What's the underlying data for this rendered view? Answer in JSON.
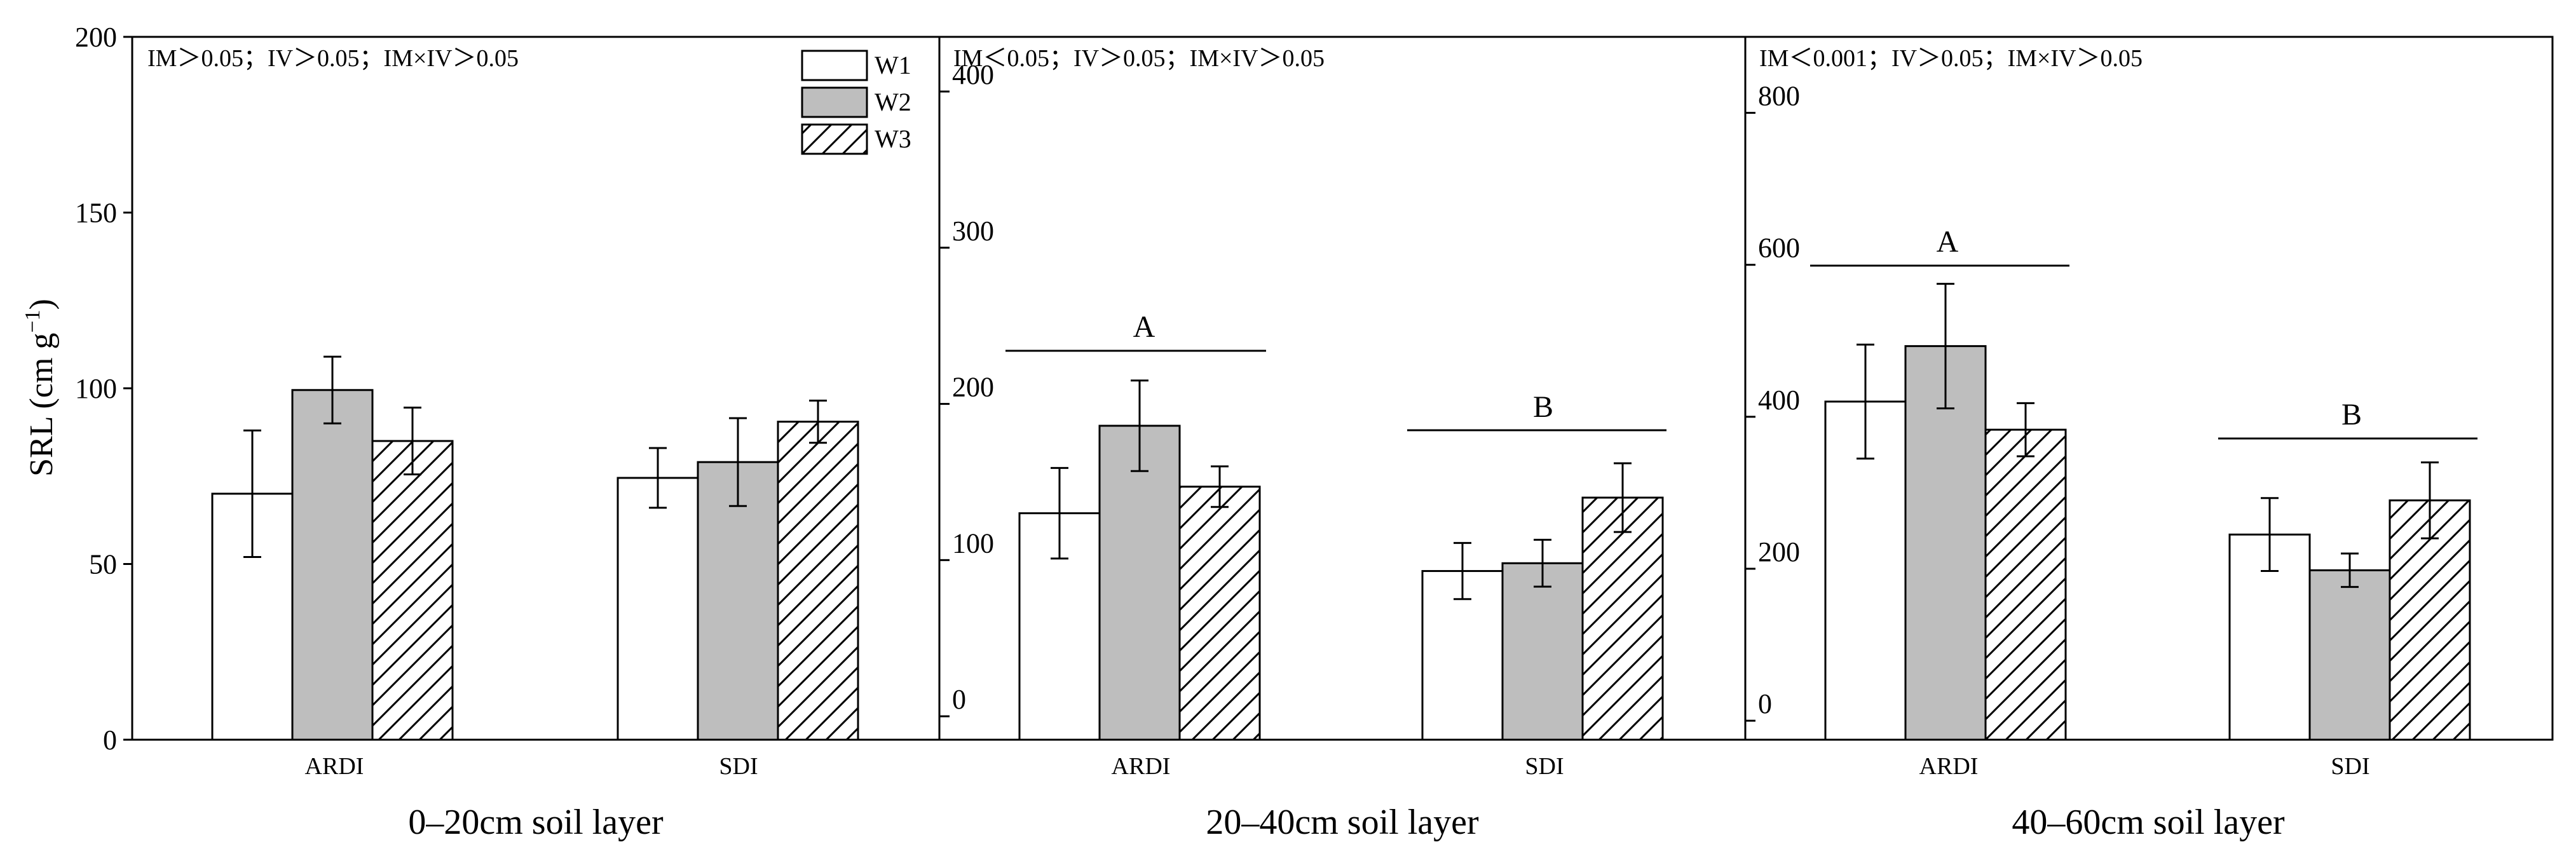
{
  "chart_data": {
    "type": "bar",
    "ylabel": "SRL (cm g",
    "ylabel_sup": "−1",
    "ylabel_close": ")",
    "series": [
      {
        "name": "W1",
        "fill": "#ffffff",
        "pattern": "none"
      },
      {
        "name": "W2",
        "fill": "#bebebe",
        "pattern": "none"
      },
      {
        "name": "W3",
        "fill": "#ffffff",
        "pattern": "hatch"
      }
    ],
    "panels": [
      {
        "title": "0–20cm soil layer",
        "stats": "IM＞0.05；IV＞0.05；IM×IV＞0.05",
        "ylim": [
          0,
          200
        ],
        "yticks": [
          0,
          50,
          100,
          150,
          200
        ],
        "categories": [
          "ARDI",
          "SDI"
        ],
        "values": [
          [
            70,
            99.5,
            85
          ],
          [
            74.5,
            79,
            90.5
          ]
        ],
        "errors": [
          [
            18,
            9.5,
            9.5
          ],
          [
            8.5,
            12.5,
            6
          ]
        ],
        "letters": [
          "",
          ""
        ]
      },
      {
        "title": "20–40cm soil layer",
        "stats": "IM＜0.05；IV＞0.05；IM×IV＞0.05",
        "ylim": [
          -15,
          435
        ],
        "yticks": [
          0,
          100,
          200,
          300,
          400
        ],
        "categories": [
          "ARDI",
          "SDI"
        ],
        "values": [
          [
            130,
            186,
            147
          ],
          [
            93,
            98,
            140
          ]
        ],
        "errors": [
          [
            29,
            29,
            13
          ],
          [
            18,
            15,
            22
          ]
        ],
        "letters": [
          "A",
          "B"
        ]
      },
      {
        "title": "40–60cm soil layer",
        "stats": "IM＜0.001；IV＞0.05；IM×IV＞0.05",
        "ylim": [
          -25,
          900
        ],
        "yticks": [
          0,
          200,
          400,
          600,
          800
        ],
        "categories": [
          "ARDI",
          "SDI"
        ],
        "values": [
          [
            420,
            493,
            383
          ],
          [
            245,
            198,
            290
          ]
        ],
        "errors": [
          [
            75,
            82,
            35
          ],
          [
            48,
            22,
            50
          ]
        ],
        "letters": [
          "A",
          "B"
        ]
      }
    ]
  }
}
